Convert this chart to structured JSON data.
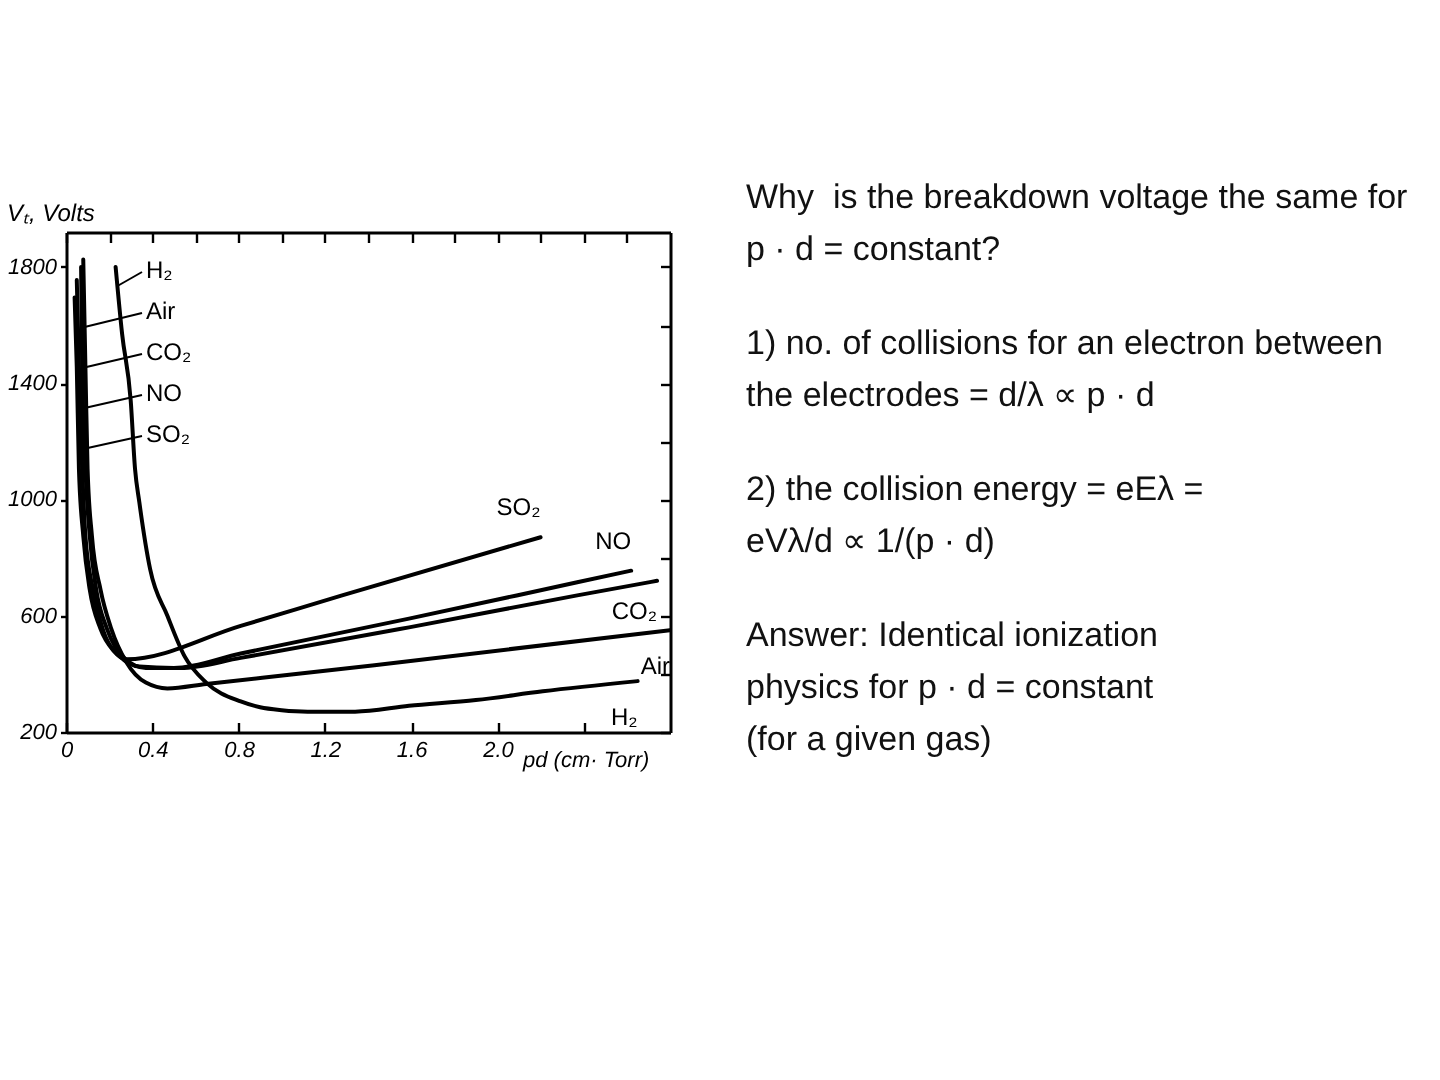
{
  "chart_data": {
    "type": "line",
    "xlabel": "pd (cm· Torr)",
    "ylabel": "Vₜ, Volts",
    "xlim": [
      0,
      2.8
    ],
    "ylim": [
      200,
      1920
    ],
    "xticks": [
      0,
      {
        "value": 0.2,
        "label": null
      },
      0.4,
      {
        "value": 0.6,
        "label": null
      },
      0.8,
      {
        "value": 1,
        "label": null
      },
      1.2,
      {
        "value": 1.4,
        "label": null
      },
      1.6,
      {
        "value": 1.8,
        "label": null
      },
      {
        "value": 2,
        "label": "2.0"
      },
      {
        "value": 2.2,
        "label": null
      },
      {
        "value": 2.4,
        "label": null
      },
      {
        "value": 2.6,
        "label": null
      }
    ],
    "yticks": [
      200,
      {
        "value": 400,
        "label": null
      },
      600,
      {
        "value": 800,
        "label": null
      },
      1000,
      {
        "value": 1200,
        "label": null
      },
      1400,
      {
        "value": 1600,
        "label": null
      },
      1800
    ],
    "legend": "top left",
    "series": [
      {
        "name": "H₂",
        "color": "#000000",
        "x": [
          0.23,
          0.26,
          0.3,
          0.32,
          0.34,
          0.39,
          0.47,
          0.55,
          0.65,
          0.81,
          0.9,
          1.0,
          1.12,
          1.34,
          1.59,
          1.9,
          2.21,
          2.65
        ],
        "values": [
          1800,
          1570,
          1340,
          1105,
          990,
          760,
          600,
          460,
          370,
          305,
          285,
          275,
          270,
          270,
          290,
          310,
          340,
          375
        ]
      },
      {
        "name": "Air",
        "color": "#000000",
        "x": [
          0.08,
          0.09,
          0.1,
          0.12,
          0.16,
          0.21,
          0.28,
          0.37,
          0.47,
          0.65,
          1.43,
          2.8
        ],
        "values": [
          1825,
          1455,
          1105,
          875,
          690,
          555,
          440,
          370,
          350,
          365,
          430,
          550
        ]
      },
      {
        "name": "CO₂",
        "color": "#000000",
        "x": [
          0.07,
          0.075,
          0.09,
          0.11,
          0.14,
          0.19,
          0.27,
          0.37,
          0.53,
          0.81,
          1.59,
          2.37,
          2.74
        ],
        "values": [
          1800,
          1455,
          1105,
          875,
          690,
          555,
          455,
          420,
          420,
          455,
          560,
          670,
          720
        ]
      },
      {
        "name": "NO",
        "color": "#000000",
        "x": [
          0.05,
          0.06,
          0.075,
          0.09,
          0.125,
          0.17,
          0.25,
          0.34,
          0.5,
          0.81,
          1.59,
          2.37,
          2.62
        ],
        "values": [
          1755,
          1455,
          1105,
          875,
          690,
          555,
          460,
          425,
          420,
          470,
          590,
          715,
          755
        ]
      },
      {
        "name": "SO₂",
        "color": "#000000",
        "x": [
          0.04,
          0.05,
          0.06,
          0.08,
          0.11,
          0.16,
          0.22,
          0.28,
          0.81,
          1.28,
          2.2
        ],
        "values": [
          1695,
          1455,
          1105,
          875,
          690,
          555,
          480,
          450,
          565,
          670,
          870
        ]
      }
    ],
    "annotations": [
      "Why  is the breakdown voltage the same for\np · d = constant?",
      "1) no. of collisions for an electron between\nthe electrodes = d/λ ∝ p · d",
      "2) the collision energy = eEλ =\neVλ/d ∝ 1/(p · d)",
      "Answer: Identical ionization\nphysics for p · d = constant\n(for a given gas)"
    ]
  }
}
